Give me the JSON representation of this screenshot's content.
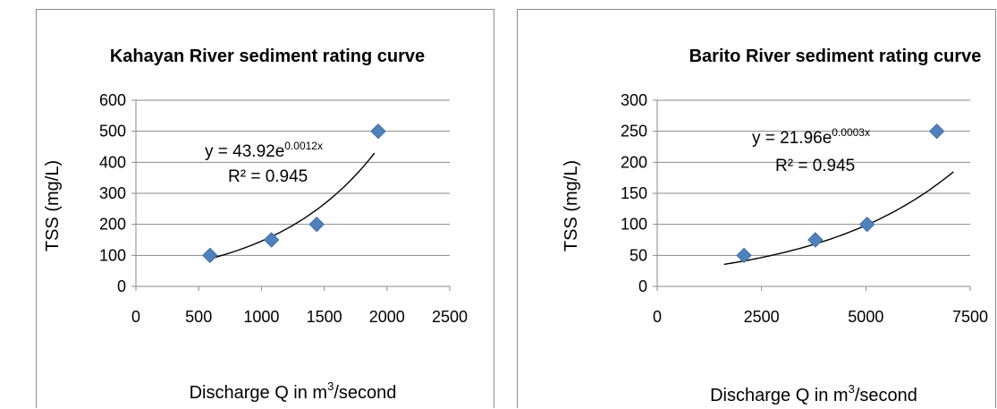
{
  "chart_data": [
    {
      "type": "scatter",
      "title": "Kahayan River sediment rating curve",
      "xlabel": "Discharge Q in m³/second",
      "xlabel_parts": [
        "Discharge Q in m",
        "3",
        "/second"
      ],
      "ylabel": "TSS (mg/L)",
      "xlim": [
        0,
        2500
      ],
      "ylim": [
        0,
        600
      ],
      "xticks": [
        0,
        500,
        1000,
        1500,
        2000,
        2500
      ],
      "yticks": [
        0,
        100,
        200,
        300,
        400,
        500,
        600
      ],
      "grid": "horizontal",
      "series": [
        {
          "points": [
            [
              590,
              100
            ],
            [
              1080,
              150
            ],
            [
              1440,
              200
            ],
            [
              1930,
              500
            ]
          ]
        }
      ],
      "trendline": {
        "kind": "exponential",
        "a": 43.92,
        "b": 0.0012,
        "x_range": [
          600,
          1900
        ]
      },
      "equation": {
        "prefix": "y = 43.92e",
        "exponent": "0.0012x",
        "r2": "R² = 0.945"
      },
      "marker_color": "#4f81bd"
    },
    {
      "type": "scatter",
      "title": "Barito River sediment rating curve",
      "xlabel": "Discharge Q in m³/second",
      "xlabel_parts": [
        "Discharge Q in m",
        "3",
        "/second"
      ],
      "ylabel": "TSS (mg/L)",
      "xlim": [
        0,
        7500
      ],
      "ylim": [
        0,
        300
      ],
      "xticks": [
        0,
        2500,
        5000,
        7500
      ],
      "yticks": [
        0,
        50,
        100,
        150,
        200,
        250,
        300
      ],
      "grid": "horizontal",
      "series": [
        {
          "points": [
            [
              2080,
              50
            ],
            [
              3790,
              75
            ],
            [
              5030,
              100
            ],
            [
              6700,
              250
            ]
          ]
        }
      ],
      "trendline": {
        "kind": "exponential",
        "a": 21.96,
        "b": 0.0003,
        "x_range": [
          1600,
          7100
        ]
      },
      "equation": {
        "prefix": "y = 21.96e",
        "exponent": "0.0003x",
        "r2": "R² = 0.945"
      },
      "marker_color": "#4f81bd"
    }
  ]
}
